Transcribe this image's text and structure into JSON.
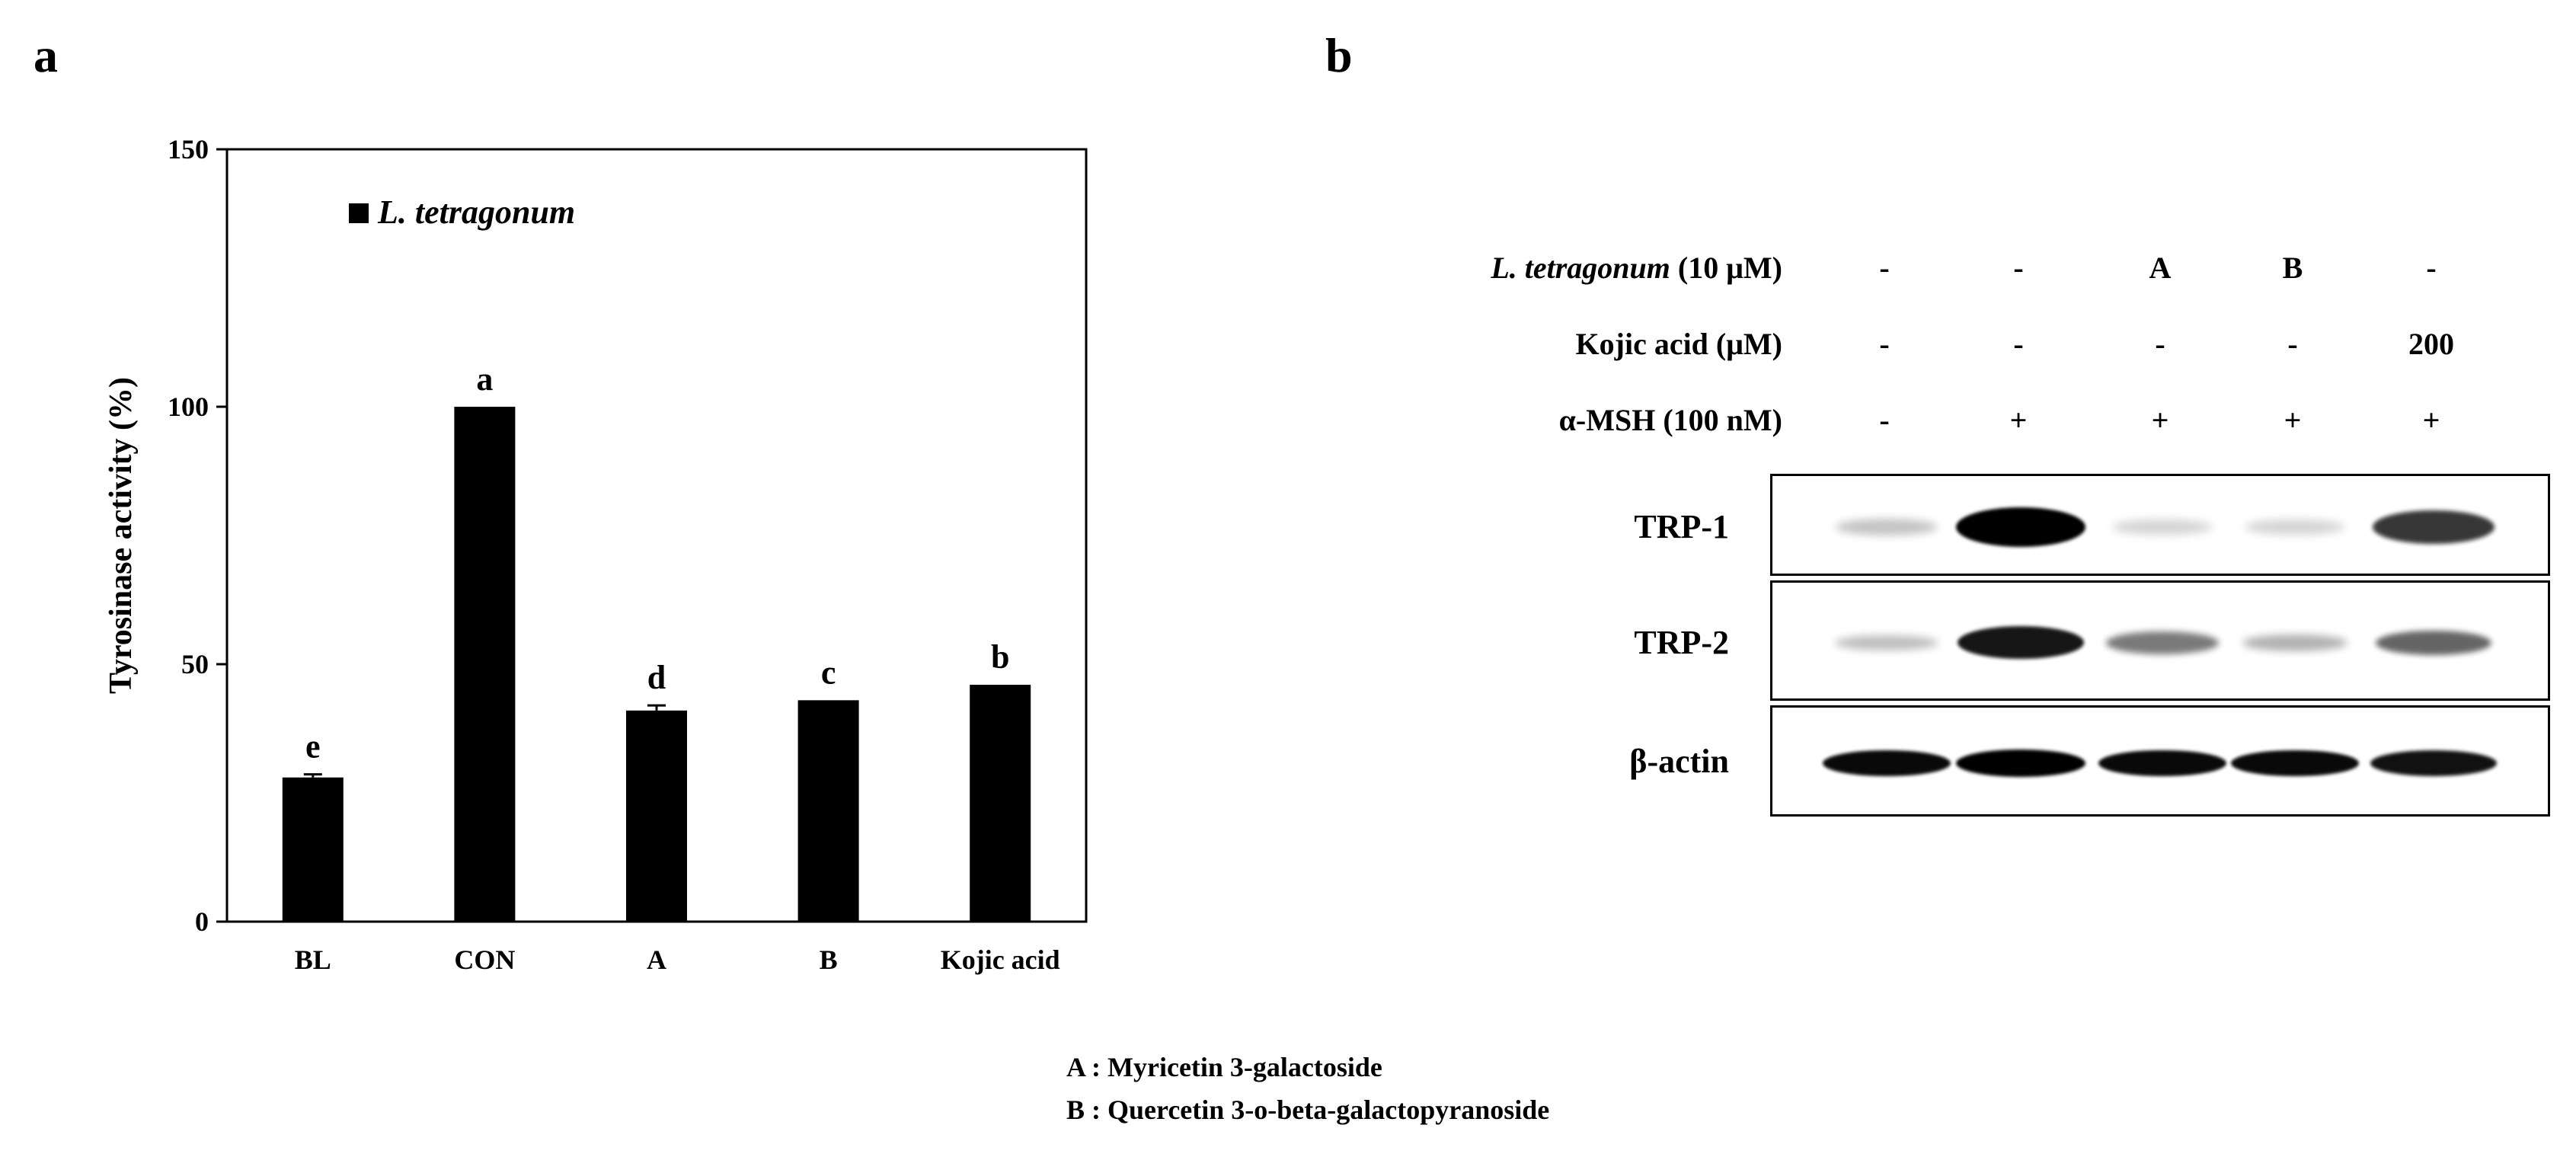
{
  "panels": {
    "a": "a",
    "b": "b"
  },
  "chart_data": {
    "type": "bar",
    "categories": [
      "BL",
      "CON",
      "A",
      "B",
      "Kojic acid"
    ],
    "series": [
      {
        "name": "L. tetragonum",
        "values": [
          28,
          100,
          41,
          43,
          46
        ],
        "errors": [
          0.6,
          0,
          1.0,
          0,
          0
        ]
      }
    ],
    "significance_letters": [
      "e",
      "a",
      "d",
      "c",
      "b"
    ],
    "ylabel": "Tyrosinase activity (%)",
    "xlabel": "",
    "ylim": [
      0,
      150
    ],
    "yticks": [
      0,
      50,
      100,
      150
    ],
    "legend_position": "top-left inside plot",
    "bar_color": "#000000",
    "grid": false
  },
  "compound_legend": [
    "A : Myricetin 3-galactoside",
    "B : Quercetin 3-o-beta-galactopyranoside"
  ],
  "western_blot": {
    "conditions": [
      {
        "label": "L. tetragonum (10 μM)",
        "values": [
          "-",
          "-",
          "A",
          "B",
          "-"
        ]
      },
      {
        "label": "Kojic acid (μM)",
        "values": [
          "-",
          "-",
          "-",
          "-",
          "200"
        ]
      },
      {
        "label": "α-MSH (100 nM)",
        "values": [
          "-",
          "+",
          "+",
          "+",
          "+"
        ]
      }
    ],
    "blots": [
      {
        "label": "TRP-1",
        "intensities": [
          0.12,
          1.0,
          0.06,
          0.06,
          0.75
        ]
      },
      {
        "label": "TRP-2",
        "intensities": [
          0.15,
          0.9,
          0.45,
          0.2,
          0.55
        ]
      },
      {
        "label": "β-actin",
        "intensities": [
          0.95,
          1.0,
          0.95,
          0.95,
          0.92
        ]
      }
    ]
  }
}
